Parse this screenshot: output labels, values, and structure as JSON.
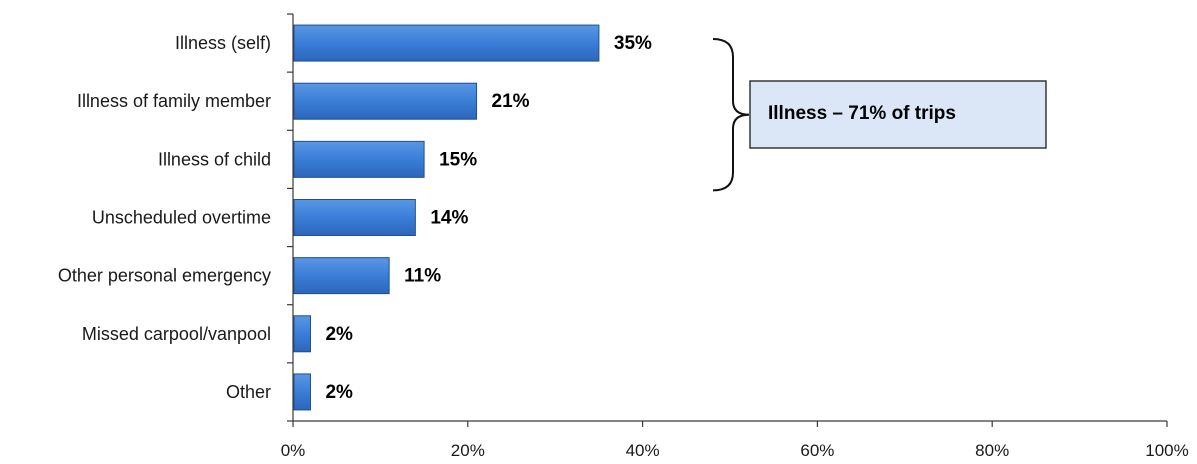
{
  "chart_data": {
    "type": "bar",
    "orientation": "horizontal",
    "categories": [
      "Illness (self)",
      "Illness of family member",
      "Illness of child",
      "Unscheduled overtime",
      "Other personal emergency",
      "Missed carpool/vanpool",
      "Other"
    ],
    "values": [
      35,
      21,
      15,
      14,
      11,
      2,
      2
    ],
    "value_labels": [
      "35%",
      "21%",
      "15%",
      "14%",
      "11%",
      "2%",
      "2%"
    ],
    "xlim": [
      0,
      100
    ],
    "xticks": [
      0,
      20,
      40,
      60,
      80,
      100
    ],
    "xtick_labels": [
      "0%",
      "20%",
      "40%",
      "60%",
      "80%",
      "100%"
    ],
    "grid": false,
    "bar_color": "#3c80d8",
    "bar_edge_color": "#1f4f95",
    "annotation": {
      "text": "Illness – 71% of trips",
      "bracket_categories": [
        "Illness (self)",
        "Illness of family member",
        "Illness of child"
      ],
      "box_fill": "#dbe7f7",
      "box_border": "#1a1a1a"
    }
  }
}
